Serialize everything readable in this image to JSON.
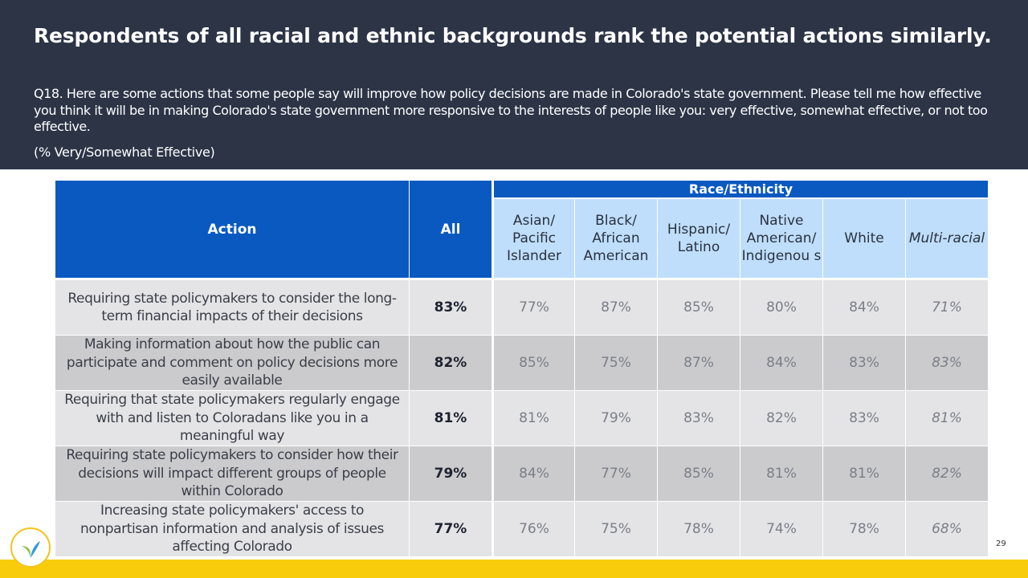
{
  "slide": {
    "title": "Respondents of all racial and ethnic backgrounds rank the potential actions similarly.",
    "question": "Q18. Here are some actions that some people say will improve how policy decisions are made in Colorado's state government. Please tell me how effective you think it will be in making Colorado's state government more responsive to the interests of people like you: very effective, somewhat effective, or not too effective.",
    "note": "(% Very/Somewhat Effective)",
    "page_number": "29"
  },
  "table": {
    "group_header": "Race/Ethnicity",
    "action_header": "Action",
    "all_header": "All",
    "race_headers": [
      "Asian/ Pacific Islander",
      "Black/ African American",
      "Hispanic/ Latino",
      "Native American/ Indigenou s",
      "White",
      "Multi-racial"
    ],
    "rows": [
      {
        "action": "Requiring state policymakers to consider the long-term financial impacts of their decisions",
        "all": "83%",
        "values": [
          "77%",
          "87%",
          "85%",
          "80%",
          "84%",
          "71%"
        ]
      },
      {
        "action": "Making information about how the public can participate and comment on policy decisions more easily available",
        "all": "82%",
        "values": [
          "85%",
          "75%",
          "87%",
          "84%",
          "83%",
          "83%"
        ]
      },
      {
        "action": "Requiring that state policymakers regularly engage with and listen to Coloradans like you in a meaningful way",
        "all": "81%",
        "values": [
          "81%",
          "79%",
          "83%",
          "82%",
          "83%",
          "81%"
        ]
      },
      {
        "action": "Requiring state policymakers to consider how their decisions will impact different groups of people within Colorado",
        "all": "79%",
        "values": [
          "84%",
          "77%",
          "85%",
          "81%",
          "81%",
          "82%"
        ]
      },
      {
        "action": "Increasing state policymakers' access to nonpartisan information and analysis of issues affecting Colorado",
        "all": "77%",
        "values": [
          "76%",
          "75%",
          "78%",
          "74%",
          "78%",
          "68%"
        ]
      }
    ]
  },
  "colors": {
    "header_bg": "#2c3446",
    "table_header_blue": "#0959c0",
    "race_header_light_blue": "#bfdefb",
    "footer_yellow": "#f8cc0b",
    "row_light": "#e4e4e6",
    "row_dark": "#cbcbcd"
  },
  "icons": {
    "logo": "leaf-logo-icon"
  }
}
